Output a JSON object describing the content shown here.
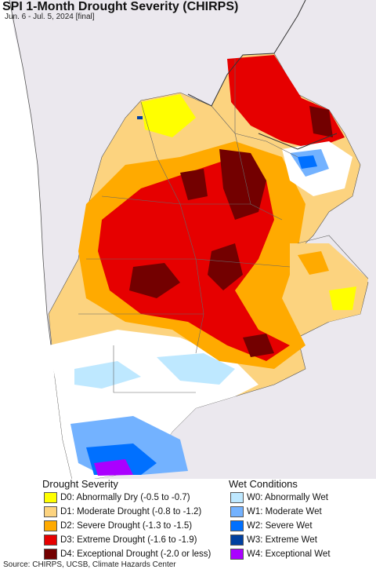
{
  "title": "SPI 1-Month Drought Severity (CHIRPS)",
  "subtitle": "Jun. 6 - Jul. 5, 2024 [final]",
  "legend": {
    "drought_title": "Drought Severity",
    "wet_title": "Wet Conditions",
    "drought": [
      {
        "label": "D0: Abnormally Dry (-0.5 to -0.7)",
        "color": "#ffff00"
      },
      {
        "label": "D1: Moderate Drought (-0.8 to -1.2)",
        "color": "#fcd37f"
      },
      {
        "label": "D2: Severe Drought (-1.3 to -1.5)",
        "color": "#ffaa00"
      },
      {
        "label": "D3: Extreme Drought (-1.6 to -1.9)",
        "color": "#e60000"
      },
      {
        "label": "D4: Exceptional Drought (-2.0 or less)",
        "color": "#730000"
      }
    ],
    "wet": [
      {
        "label": "W0: Abnormally Wet",
        "color": "#bee8ff"
      },
      {
        "label": "W1: Moderate Wet",
        "color": "#73b2ff"
      },
      {
        "label": "W2: Severe Wet",
        "color": "#0070ff"
      },
      {
        "label": "W3: Extreme Wet",
        "color": "#0040a0"
      },
      {
        "label": "W4: Exceptional Wet",
        "color": "#aa00ff"
      }
    ]
  },
  "source": "Source: CHIRPS, UCSB, Climate Hazards Center",
  "map_colors": {
    "ocean": "#ffffff",
    "outside_land": "#ebe8ee",
    "border": "#555555"
  }
}
